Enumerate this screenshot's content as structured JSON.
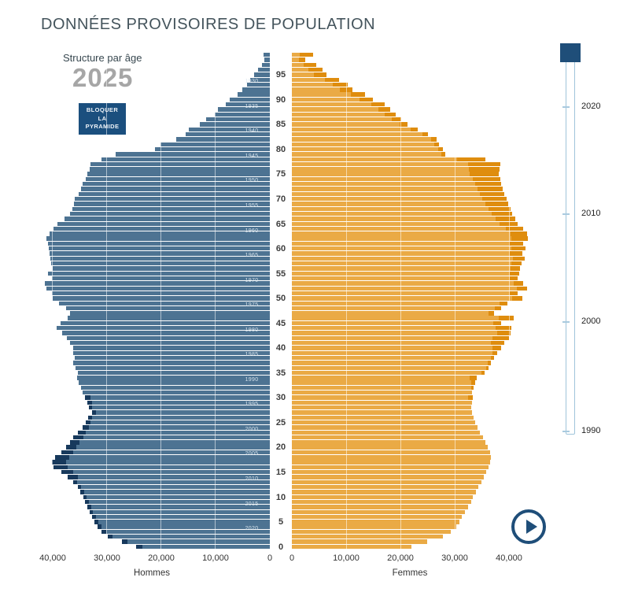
{
  "title": "DONNÉES PROVISOIRES DE POPULATION",
  "subtitle": "Structure par âge",
  "current_year": "2025",
  "lock_button": {
    "line1": "BLOQUER",
    "line2": "LA",
    "line3": "PYRAMIDE"
  },
  "colors": {
    "male": "#4d7392",
    "male_highlight": "#17395c",
    "female": "#eaaa45",
    "female_highlight": "#df8d0e",
    "button": "#1b4f7e",
    "slider_handle": "#1f4e79",
    "slider_track_border": "#9fc4da",
    "title_text": "#44545c",
    "year_text": "#a6a6a6"
  },
  "axis": {
    "left_title": "Hommes",
    "right_title": "Femmes",
    "left_ticks": [
      "40,000",
      "30,000",
      "20,000",
      "10,000",
      "0"
    ],
    "right_ticks": [
      "0",
      "10,000",
      "20,000",
      "30,000",
      "40,000"
    ],
    "age_ticks": [
      0,
      5,
      10,
      15,
      20,
      25,
      30,
      35,
      40,
      45,
      50,
      55,
      60,
      65,
      70,
      75,
      80,
      85,
      90,
      95
    ],
    "birth_year_labels": [
      "1930",
      "1935",
      "1940",
      "1945",
      "1950",
      "1955",
      "1960",
      "1965",
      "1970",
      "1975",
      "1980",
      "1985",
      "1990",
      "1995",
      "2000",
      "2005",
      "2010",
      "2015",
      "2020"
    ]
  },
  "timeline": {
    "handle_year": "2025",
    "tick_labels": [
      "2020",
      "2010",
      "2000",
      "1990"
    ],
    "range": [
      1990,
      2025
    ]
  },
  "chart_data": {
    "type": "bar",
    "subtype": "population-pyramid",
    "title": "Structure par âge 2025",
    "x_range_per_side": [
      0,
      40000
    ],
    "age_range": [
      0,
      99
    ],
    "grid": "on",
    "note": "values = population per single year of age; highlight = dark outer tip of bar",
    "series": [
      {
        "name": "Hommes",
        "values": [
          24600,
          27200,
          29900,
          31000,
          31800,
          32300,
          32800,
          33200,
          33600,
          34000,
          34400,
          34900,
          35400,
          36200,
          37200,
          38400,
          39900,
          40200,
          39600,
          38400,
          37500,
          36800,
          36200,
          35300,
          34500,
          33900,
          33500,
          32700,
          33300,
          33600,
          34000,
          34500,
          34800,
          35200,
          35500,
          35300,
          35800,
          36200,
          36000,
          36300,
          36300,
          36800,
          37400,
          38200,
          39300,
          38500,
          37200,
          36800,
          37500,
          38900,
          40000,
          40200,
          41100,
          41500,
          40100,
          40900,
          40000,
          40300,
          40400,
          40600,
          40700,
          40900,
          41100,
          40600,
          39900,
          39200,
          37800,
          36800,
          36400,
          36100,
          35900,
          35200,
          34800,
          34500,
          33900,
          33600,
          33200,
          33000,
          31000,
          28400,
          21100,
          20100,
          17200,
          15500,
          14900,
          12900,
          11700,
          10200,
          9600,
          8100,
          7400,
          6000,
          5100,
          4200,
          3600,
          2900,
          2200,
          1500,
          1000,
          1200
        ],
        "highlight": [
          1100,
          1000,
          900,
          900,
          800,
          700,
          700,
          600,
          700,
          600,
          600,
          700,
          600,
          700,
          1800,
          2200,
          2700,
          2700,
          2600,
          2100,
          1800,
          1700,
          1800,
          1400,
          1100,
          800,
          700,
          700,
          500,
          900,
          1000,
          0,
          0,
          0,
          0,
          0,
          0,
          0,
          0,
          0,
          0,
          0,
          0,
          0,
          0,
          0,
          0,
          0,
          0,
          0,
          0,
          0,
          0,
          0,
          0,
          0,
          0,
          0,
          0,
          0,
          0,
          0,
          0,
          0,
          0,
          0,
          0,
          0,
          0,
          0,
          0,
          0,
          0,
          0,
          0,
          0,
          0,
          0,
          0,
          0,
          0,
          0,
          0,
          0,
          0,
          0,
          0,
          0,
          0,
          0,
          0,
          0,
          0,
          0,
          0,
          0,
          0,
          0,
          0,
          0
        ]
      },
      {
        "name": "Femmes",
        "values": [
          22000,
          24900,
          27800,
          29300,
          30300,
          30800,
          31300,
          31900,
          32400,
          33000,
          33300,
          33900,
          34300,
          34900,
          35400,
          35800,
          36200,
          36500,
          36600,
          36500,
          36100,
          35700,
          35200,
          34600,
          34200,
          33800,
          33500,
          33200,
          33000,
          33200,
          33400,
          33200,
          33500,
          33800,
          34000,
          35500,
          36300,
          36700,
          37300,
          37800,
          38500,
          39200,
          40000,
          40300,
          40500,
          38600,
          40900,
          37200,
          38600,
          39700,
          42400,
          41600,
          43400,
          42600,
          41600,
          41900,
          42100,
          42300,
          42900,
          42400,
          43100,
          42600,
          43500,
          43300,
          42600,
          41600,
          41100,
          40600,
          40300,
          39900,
          39500,
          39100,
          38900,
          38600,
          38400,
          38100,
          38300,
          38400,
          35600,
          28200,
          27800,
          27100,
          26600,
          25100,
          23200,
          21300,
          20200,
          19100,
          18100,
          17100,
          14900,
          13500,
          11200,
          10300,
          8700,
          6400,
          5700,
          4500,
          2500,
          3900
        ],
        "highlight": [
          0,
          0,
          0,
          0,
          0,
          0,
          0,
          0,
          0,
          0,
          0,
          0,
          0,
          0,
          0,
          0,
          0,
          0,
          0,
          0,
          0,
          0,
          0,
          0,
          0,
          0,
          0,
          0,
          0,
          0,
          1000,
          0,
          400,
          800,
          1200,
          600,
          500,
          600,
          700,
          800,
          1500,
          2500,
          3000,
          2500,
          3000,
          1500,
          2800,
          1000,
          1200,
          1500,
          1800,
          1500,
          2000,
          1800,
          1500,
          1700,
          1800,
          1900,
          2200,
          2200,
          2600,
          2600,
          3000,
          3000,
          3200,
          3400,
          3600,
          3800,
          4000,
          4200,
          4400,
          4500,
          4700,
          4900,
          5100,
          5400,
          5700,
          6000,
          5200,
          600,
          800,
          900,
          1000,
          1100,
          1300,
          1500,
          1800,
          2000,
          2200,
          2400,
          2400,
          2700,
          2400,
          2700,
          2600,
          2300,
          2600,
          2400,
          1200,
          2400
        ]
      }
    ]
  }
}
